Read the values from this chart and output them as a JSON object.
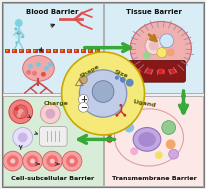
{
  "background_color": "#f0f0f0",
  "quadrant_colors": {
    "top_left": "#d8edf5",
    "top_right": "#d8edf5",
    "bottom_left": "#d8edd8",
    "bottom_right": "#fde8e8"
  },
  "quadrant_labels": {
    "top_left": "Blood Barrier",
    "top_right": "Tissue Barrier",
    "bottom_left": "Cell-subcellular Barrier",
    "bottom_right": "Transmembrane Barrier"
  },
  "center_circle_color": "#f5e97a",
  "center_inner_color": "#c0cce8",
  "center_labels": [
    "Shape",
    "Size",
    "Ligand",
    "Charge"
  ],
  "arrow_color": "#38a838",
  "figsize": [
    2.07,
    1.89
  ],
  "dpi": 100
}
